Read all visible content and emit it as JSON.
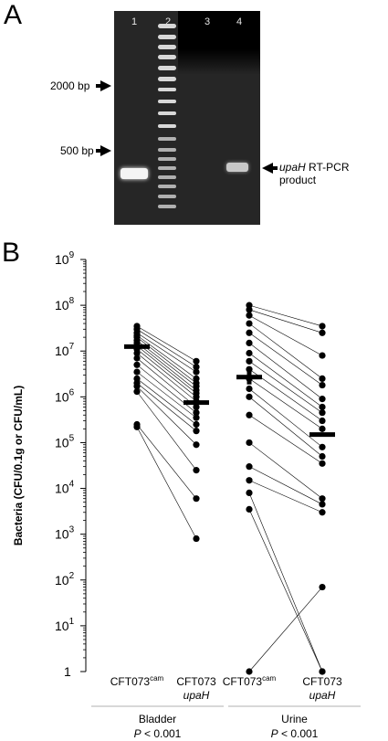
{
  "panel_a": {
    "letter": "A",
    "lanes": [
      "1",
      "2",
      "3",
      "4"
    ],
    "markers": [
      "2000 bp",
      "500 bp"
    ],
    "product_label_italic": "upaH",
    "product_label_rest": "RT-PCR",
    "product_label_line2": "product"
  },
  "panel_b": {
    "letter": "B"
  },
  "chart_data": {
    "type": "scatter",
    "scale": "log",
    "ylabel": "Bacteria (CFU/0.1g or CFU/mL)",
    "ylim": [
      1,
      1000000000
    ],
    "yticks": [
      {
        "base": "10",
        "exp": "9"
      },
      {
        "base": "10",
        "exp": "8"
      },
      {
        "base": "10",
        "exp": "7"
      },
      {
        "base": "10",
        "exp": "6"
      },
      {
        "base": "10",
        "exp": "5"
      },
      {
        "base": "10",
        "exp": "4"
      },
      {
        "base": "10",
        "exp": "3"
      },
      {
        "base": "10",
        "exp": "2"
      },
      {
        "base": "10",
        "exp": "1"
      },
      {
        "base": "1",
        "exp": ""
      }
    ],
    "categories": [
      {
        "line1": "CFT073",
        "sup": "cam",
        "line2": ""
      },
      {
        "line1": "CFT073",
        "sup": "",
        "line2": "upaH"
      },
      {
        "line1": "CFT073",
        "sup": "cam",
        "line2": ""
      },
      {
        "line1": "CFT073",
        "sup": "",
        "line2": "upaH"
      }
    ],
    "groups": [
      {
        "name": "Bladder",
        "p_prefix": "P",
        "p_text": " < 0.001"
      },
      {
        "name": "Urine",
        "p_prefix": "P",
        "p_text": " < 0.001"
      }
    ],
    "bladder_pairs": [
      [
        35000000,
        6000000
      ],
      [
        30000000,
        4500000
      ],
      [
        25000000,
        3500000
      ],
      [
        22000000,
        2500000
      ],
      [
        20000000,
        2000000
      ],
      [
        17000000,
        1700000
      ],
      [
        15000000,
        1400000
      ],
      [
        13000000,
        1200000
      ],
      [
        11000000,
        1000000
      ],
      [
        9000000,
        800000
      ],
      [
        7000000,
        600000
      ],
      [
        5000000,
        450000
      ],
      [
        3500000,
        350000
      ],
      [
        2500000,
        250000
      ],
      [
        2000000,
        180000
      ],
      [
        1700000,
        90000
      ],
      [
        1300000,
        25000
      ],
      [
        250000,
        6000
      ],
      [
        220000,
        800
      ]
    ],
    "urine_pairs": [
      [
        100000000,
        35000000
      ],
      [
        80000000,
        25000000
      ],
      [
        60000000,
        8000000
      ],
      [
        40000000,
        2500000
      ],
      [
        25000000,
        1800000
      ],
      [
        15000000,
        900000
      ],
      [
        9000000,
        600000
      ],
      [
        6000000,
        450000
      ],
      [
        4000000,
        300000
      ],
      [
        2500000,
        200000
      ],
      [
        1500000,
        80000
      ],
      [
        1000000,
        50000
      ],
      [
        400000,
        35000
      ],
      [
        100000,
        6000
      ],
      [
        30000,
        4500
      ],
      [
        15000,
        3000
      ],
      [
        8000,
        1
      ],
      [
        3500,
        1
      ],
      [
        1,
        70
      ]
    ],
    "medians": [
      12500000,
      750000,
      2700000,
      150000
    ]
  }
}
